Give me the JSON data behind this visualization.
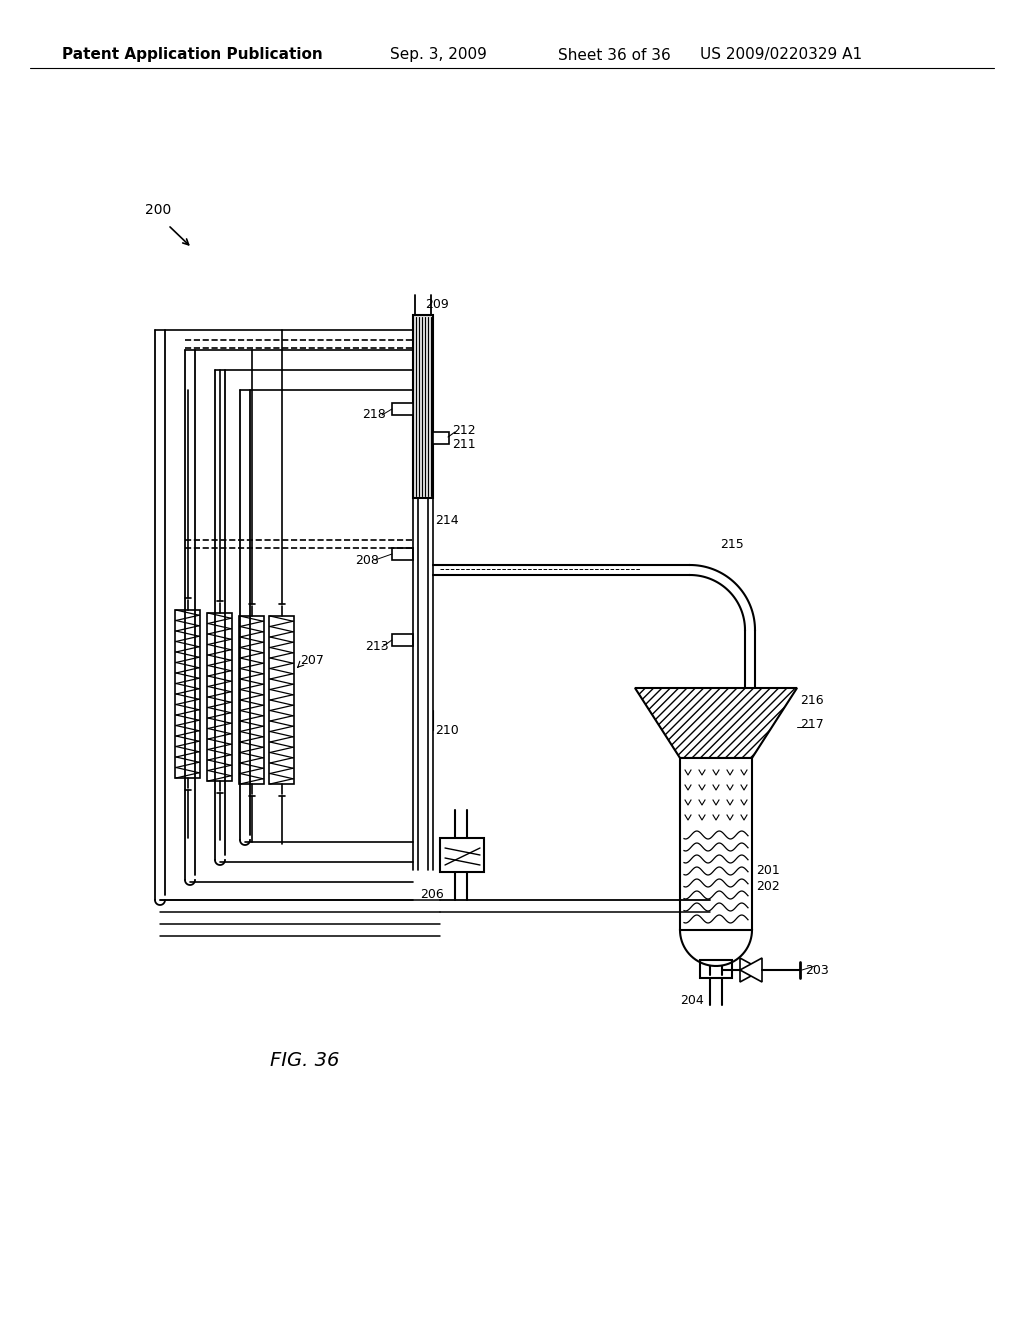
{
  "title": "Patent Application Publication",
  "date": "Sep. 3, 2009",
  "sheet": "Sheet 36 of 36",
  "patent_num": "US 2009/0220329 A1",
  "fig_label": "FIG. 36",
  "background": "#ffffff"
}
